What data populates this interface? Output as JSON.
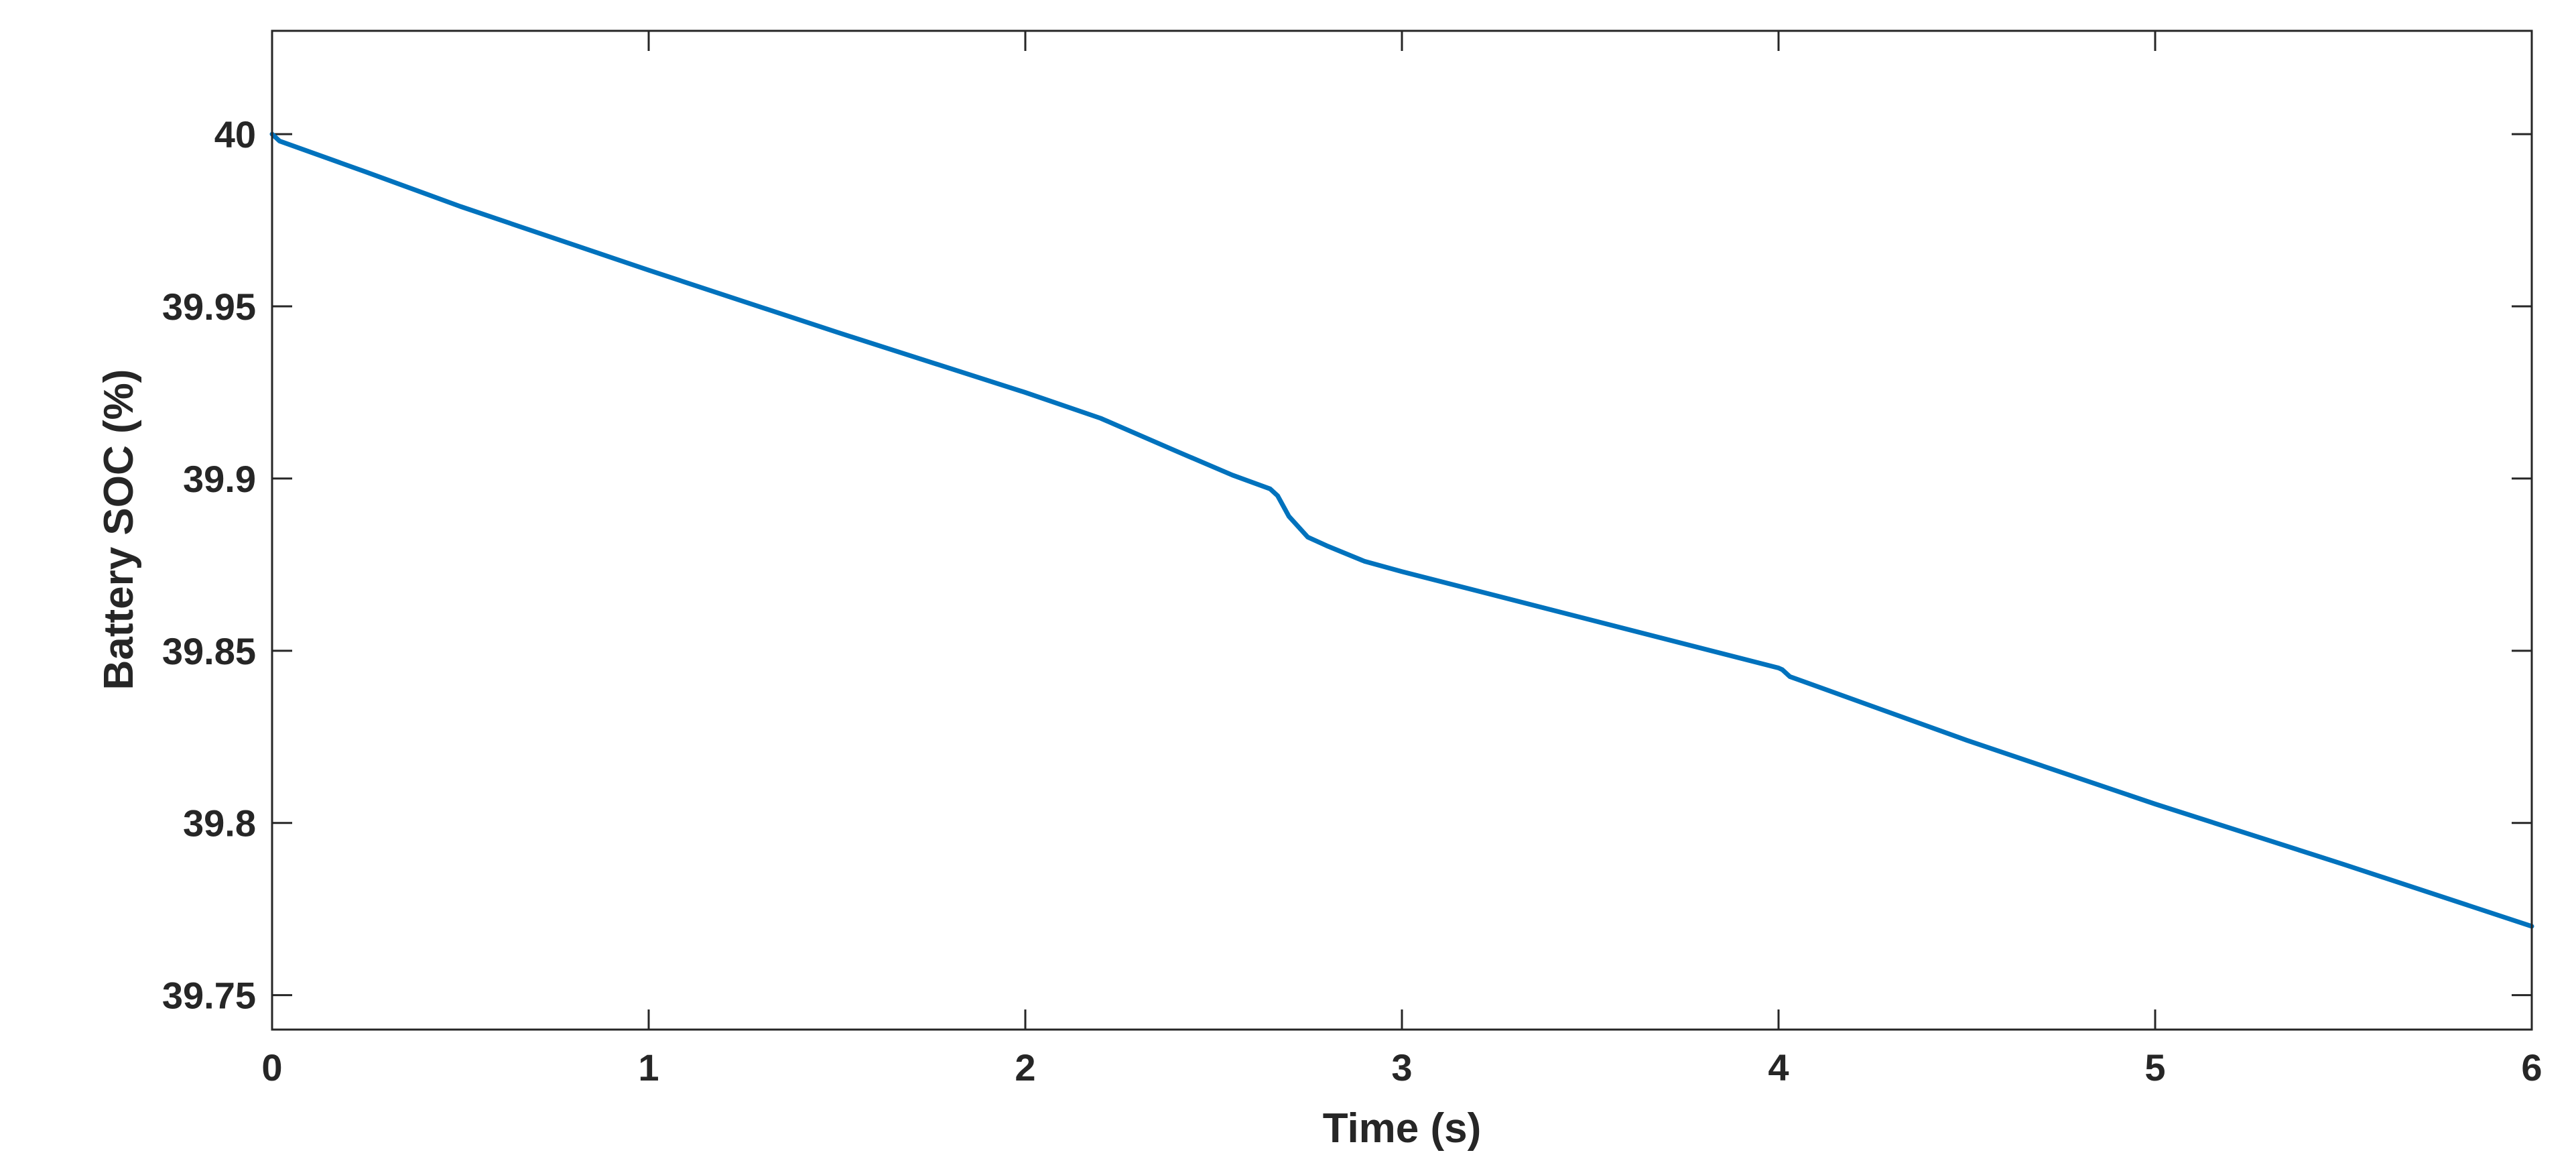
{
  "chart_data": {
    "type": "line",
    "title": "",
    "xlabel": "Time (s)",
    "ylabel": "Battery SOC (%)",
    "xlim": [
      0,
      6
    ],
    "ylim": [
      39.74,
      40.03
    ],
    "xticks": [
      0,
      1,
      2,
      3,
      4,
      5,
      6
    ],
    "xtick_labels": [
      "0",
      "1",
      "2",
      "3",
      "4",
      "5",
      "6"
    ],
    "yticks": [
      39.75,
      39.8,
      39.85,
      39.9,
      39.95,
      40
    ],
    "ytick_labels": [
      "39.75",
      "39.8",
      "39.85",
      "39.9",
      "39.95",
      "40"
    ],
    "grid": false,
    "box": true,
    "series": [
      {
        "color": "#0072BD",
        "x": [
          0,
          0.02,
          0.25,
          0.5,
          1.0,
          1.5,
          2.0,
          2.2,
          2.4,
          2.55,
          2.65,
          2.67,
          2.7,
          2.75,
          2.8,
          2.9,
          3.0,
          3.5,
          4.0,
          4.01,
          4.03,
          4.5,
          5.0,
          5.5,
          6.0
        ],
        "y": [
          40.0,
          39.998,
          39.989,
          39.979,
          39.9605,
          39.9425,
          39.925,
          39.9175,
          39.908,
          39.901,
          39.897,
          39.895,
          39.889,
          39.883,
          39.8805,
          39.876,
          39.873,
          39.859,
          39.845,
          39.8445,
          39.8425,
          39.824,
          39.8055,
          39.788,
          39.77
        ]
      }
    ]
  }
}
